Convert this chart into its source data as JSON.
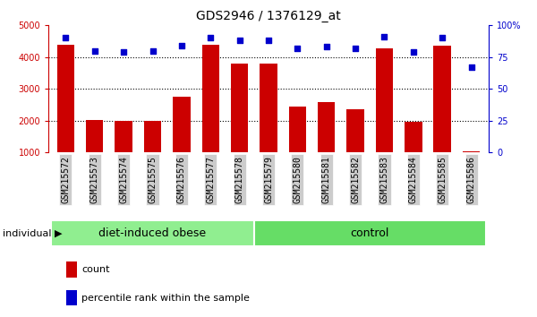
{
  "title": "GDS2946 / 1376129_at",
  "categories": [
    "GSM215572",
    "GSM215573",
    "GSM215574",
    "GSM215575",
    "GSM215576",
    "GSM215577",
    "GSM215578",
    "GSM215579",
    "GSM215580",
    "GSM215581",
    "GSM215582",
    "GSM215583",
    "GSM215584",
    "GSM215585",
    "GSM215586"
  ],
  "bar_values": [
    4380,
    2020,
    1980,
    1980,
    2760,
    4380,
    3800,
    3800,
    2430,
    2570,
    2340,
    4270,
    1960,
    4360,
    1020
  ],
  "scatter_values": [
    90,
    80,
    79,
    80,
    84,
    90,
    88,
    88,
    82,
    83,
    82,
    91,
    79,
    90,
    67
  ],
  "bar_color": "#cc0000",
  "scatter_color": "#0000cc",
  "ylim_left": [
    1000,
    5000
  ],
  "ylim_right": [
    0,
    100
  ],
  "yticks_left": [
    1000,
    2000,
    3000,
    4000,
    5000
  ],
  "yticks_right": [
    0,
    25,
    50,
    75,
    100
  ],
  "yticklabels_right": [
    "0",
    "25",
    "50",
    "75",
    "100%"
  ],
  "group1_label": "diet-induced obese",
  "group1_count": 7,
  "group2_label": "control",
  "group2_count": 8,
  "individual_label": "individual",
  "legend_count_label": "count",
  "legend_percentile_label": "percentile rank within the sample",
  "group1_color": "#90ee90",
  "group2_color": "#66dd66",
  "xticklabel_bg": "#cccccc",
  "plot_bg": "#ffffff",
  "title_fontsize": 10,
  "tick_fontsize": 7,
  "group_label_fontsize": 9
}
